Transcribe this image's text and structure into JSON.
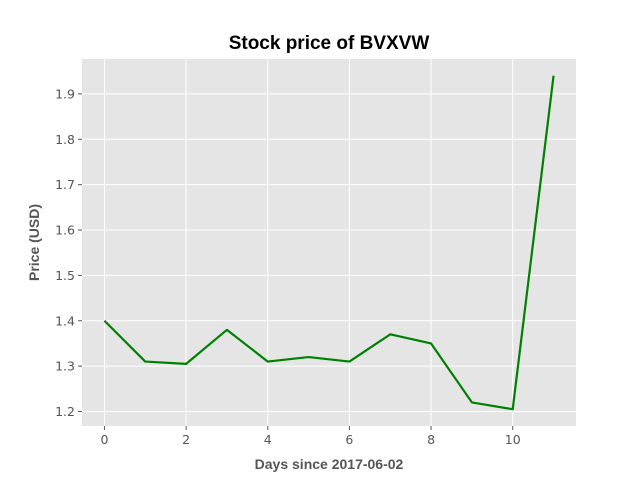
{
  "chart_data": {
    "type": "line",
    "title": "Stock price of BVXVW",
    "xlabel": "Days since 2017-06-02",
    "ylabel": "Price (USD)",
    "x": [
      0,
      1,
      2,
      3,
      4,
      5,
      6,
      7,
      8,
      9,
      10,
      11
    ],
    "series": [
      {
        "values": [
          1.4,
          1.31,
          1.305,
          1.38,
          1.31,
          1.32,
          1.31,
          1.37,
          1.35,
          1.22,
          1.205,
          1.94
        ]
      }
    ],
    "xlim": [
      -0.55,
      11.55
    ],
    "ylim": [
      1.168,
      1.977
    ],
    "xticks": [
      0,
      2,
      4,
      6,
      8,
      10
    ],
    "yticks": [
      1.2,
      1.3,
      1.4,
      1.5,
      1.6,
      1.7,
      1.8,
      1.9
    ],
    "grid": true,
    "line_color": "#008000",
    "background_color": "#e5e5e5",
    "grid_color": "#ffffff"
  }
}
